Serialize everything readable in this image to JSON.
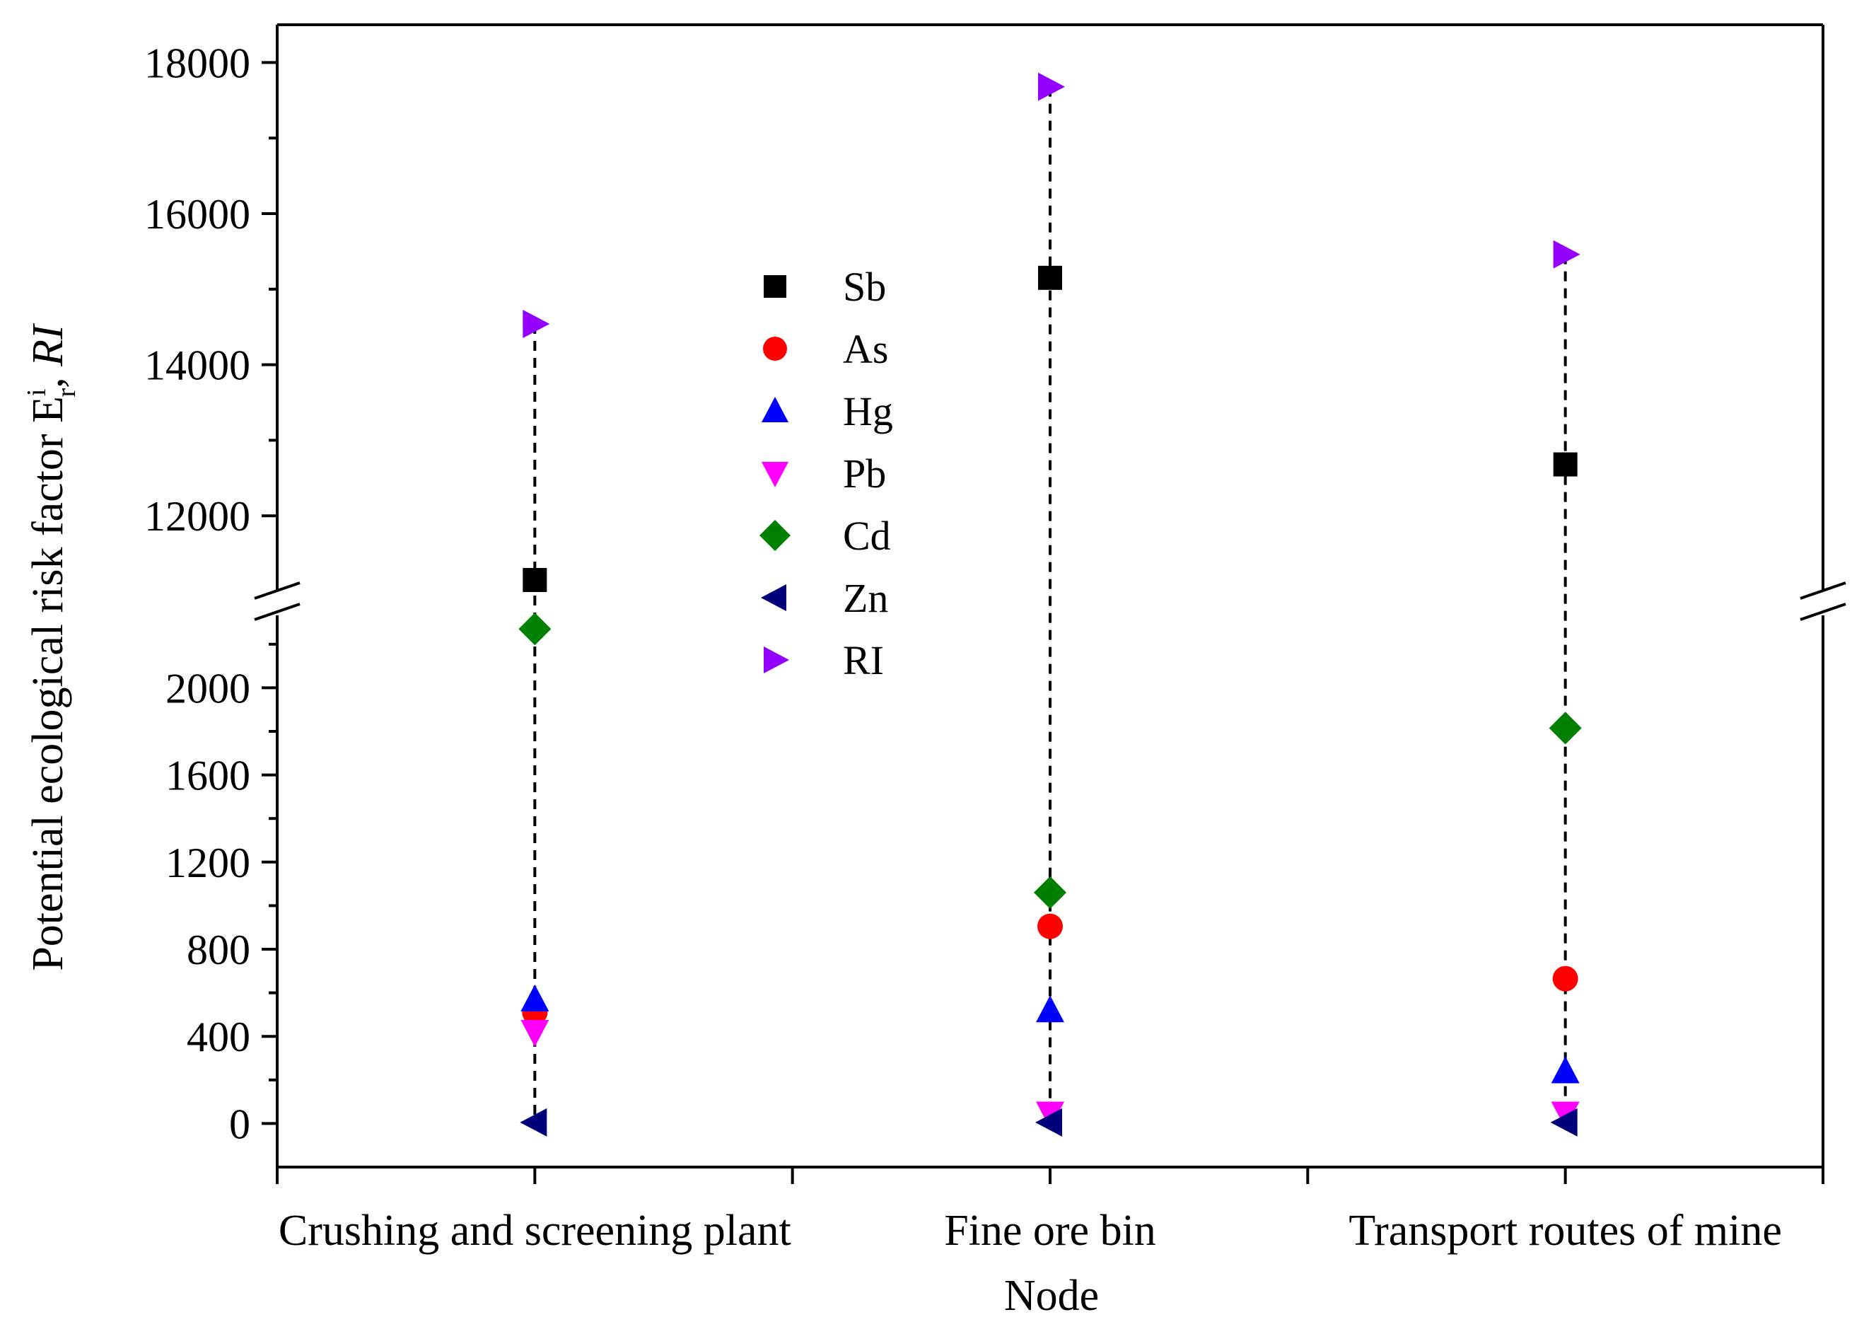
{
  "chart_data": {
    "type": "scatter",
    "title": "",
    "xlabel": "Node",
    "ylabel": {
      "main": "Potential ecological risk factor E",
      "sup": "i",
      "sub": "r",
      "sep": ", ",
      "italic": "RI"
    },
    "categories": [
      "Crushing and screening plant",
      "Fine ore bin",
      "Transport routes of mine"
    ],
    "broken_y_axis": true,
    "y_segments": {
      "lower": {
        "ylim": [
          -200,
          2300
        ],
        "ticks": [
          0,
          400,
          800,
          1200,
          1600,
          2000
        ],
        "minor_step": 200
      },
      "upper": {
        "ylim": [
          11150,
          18500
        ],
        "ticks": [
          12000,
          14000,
          16000,
          18000
        ],
        "minor_step": 1000
      }
    },
    "series": [
      {
        "name": "Sb",
        "marker": "square",
        "color": "#000000",
        "values": [
          11150,
          15150,
          12680
        ]
      },
      {
        "name": "As",
        "marker": "circle",
        "color": "#ff0000",
        "values": [
          510,
          905,
          665
        ]
      },
      {
        "name": "Hg",
        "marker": "triangle-up",
        "color": "#0000ff",
        "values": [
          570,
          520,
          240
        ]
      },
      {
        "name": "Pb",
        "marker": "triangle-down",
        "color": "#ff00ff",
        "values": [
          420,
          45,
          45
        ]
      },
      {
        "name": "Cd",
        "marker": "diamond",
        "color": "#008000",
        "values": [
          2270,
          1060,
          1815
        ]
      },
      {
        "name": "Zn",
        "marker": "triangle-left",
        "color": "#00007a",
        "values": [
          5,
          5,
          5
        ]
      },
      {
        "name": "RI",
        "marker": "triangle-right",
        "color": "#9400ff",
        "values": [
          14540,
          17680,
          15460
        ]
      }
    ],
    "connector": {
      "style": "dashed",
      "color": "#000000"
    },
    "legend": {
      "position": "top-center",
      "frame": false
    },
    "grid": false
  }
}
